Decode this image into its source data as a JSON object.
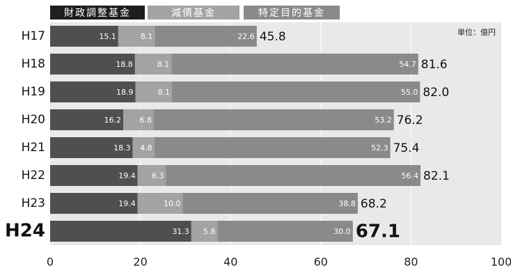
{
  "chart_data": {
    "type": "stacked-bar-horizontal",
    "unit_note": "単位：億円",
    "categories": [
      "H17",
      "H18",
      "H19",
      "H20",
      "H21",
      "H22",
      "H23",
      "H24"
    ],
    "series": [
      {
        "name": "財政調整基金",
        "color": "#4f4f4f",
        "values": [
          15.1,
          18.8,
          18.9,
          16.2,
          18.3,
          19.4,
          19.4,
          31.3
        ],
        "value_labels": [
          "15.1",
          "18.8",
          "18.9",
          "16.2",
          "18.3",
          "19.4",
          "19.4",
          "31.3"
        ]
      },
      {
        "name": "減債基金",
        "color": "#a3a3a3",
        "values": [
          8.1,
          8.1,
          8.1,
          6.8,
          4.8,
          6.3,
          10.0,
          5.8
        ],
        "value_labels": [
          "8.1",
          "8.1",
          "8.1",
          "6.8",
          "4.8",
          "6.3",
          "10.0",
          "5.8"
        ]
      },
      {
        "name": "特定目的基金",
        "color": "#8a8a8a",
        "values": [
          22.6,
          54.7,
          55.0,
          53.2,
          52.3,
          56.4,
          38.8,
          30.0
        ],
        "value_labels": [
          "22.6",
          "54.7",
          "55.0",
          "53.2",
          "52.3",
          "56.4",
          "38.8",
          "30.0"
        ]
      }
    ],
    "totals": [
      45.8,
      81.6,
      82.0,
      76.2,
      75.4,
      82.1,
      68.2,
      67.1
    ],
    "total_labels": [
      "45.8",
      "81.6",
      "82.0",
      "76.2",
      "75.4",
      "82.1",
      "68.2",
      "67.1"
    ],
    "xlim": [
      0,
      100
    ],
    "xticks": [
      0,
      20,
      40,
      60,
      80,
      100
    ],
    "grid": true
  }
}
